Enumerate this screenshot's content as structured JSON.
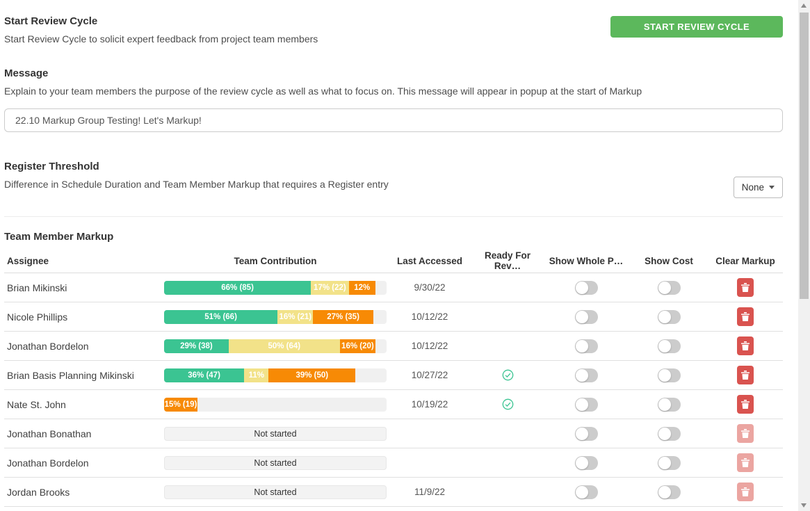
{
  "start_review_cycle": {
    "title": "Start Review Cycle",
    "description": "Start Review Cycle to solicit expert feedback from project team members",
    "button_label": "START REVIEW CYCLE"
  },
  "message": {
    "title": "Message",
    "description": "Explain to your team members the purpose of the review cycle as well as what to focus on. This message will appear in popup at the start of Markup",
    "input_value": "22.10 Markup Group Testing! Let's Markup!"
  },
  "register_threshold": {
    "title": "Register Threshold",
    "description": "Difference in Schedule Duration and Team Member Markup that requires a Register entry",
    "dropdown_value": "None"
  },
  "table": {
    "title": "Team Member Markup",
    "columns": {
      "assignee": "Assignee",
      "contribution": "Team Contribution",
      "last_accessed": "Last Accessed",
      "ready": "Ready For Rev…",
      "show_whole": "Show Whole P…",
      "show_cost": "Show Cost",
      "clear": "Clear Markup"
    },
    "not_started_label": "Not started",
    "rows": [
      {
        "assignee": "Brian Mikinski",
        "segments": [
          {
            "label": "66% (85)",
            "pct": 66,
            "color": "green"
          },
          {
            "label": "17% (22)",
            "pct": 17,
            "color": "yellow"
          },
          {
            "label": "12%",
            "pct": 12,
            "color": "orange"
          }
        ],
        "last_accessed": "9/30/22",
        "ready_for_review": false,
        "show_whole_project": false,
        "show_cost": false,
        "delete_enabled": true
      },
      {
        "assignee": "Nicole Phillips",
        "segments": [
          {
            "label": "51% (66)",
            "pct": 51,
            "color": "green"
          },
          {
            "label": "16% (21)",
            "pct": 16,
            "color": "yellow"
          },
          {
            "label": "27% (35)",
            "pct": 27,
            "color": "orange"
          }
        ],
        "last_accessed": "10/12/22",
        "ready_for_review": false,
        "show_whole_project": false,
        "show_cost": false,
        "delete_enabled": true
      },
      {
        "assignee": "Jonathan Bordelon",
        "segments": [
          {
            "label": "29% (38)",
            "pct": 29,
            "color": "green"
          },
          {
            "label": "50% (64)",
            "pct": 50,
            "color": "yellow"
          },
          {
            "label": "16% (20)",
            "pct": 16,
            "color": "orange"
          }
        ],
        "last_accessed": "10/12/22",
        "ready_for_review": false,
        "show_whole_project": false,
        "show_cost": false,
        "delete_enabled": true
      },
      {
        "assignee": "Brian Basis Planning Mikinski",
        "segments": [
          {
            "label": "36% (47)",
            "pct": 36,
            "color": "green"
          },
          {
            "label": "11%",
            "pct": 11,
            "color": "yellow"
          },
          {
            "label": "39% (50)",
            "pct": 39,
            "color": "orange"
          }
        ],
        "last_accessed": "10/27/22",
        "ready_for_review": true,
        "show_whole_project": false,
        "show_cost": false,
        "delete_enabled": true
      },
      {
        "assignee": "Nate St. John",
        "segments": [
          {
            "label": "15% (19)",
            "pct": 15,
            "color": "orange"
          }
        ],
        "last_accessed": "10/19/22",
        "ready_for_review": true,
        "show_whole_project": false,
        "show_cost": false,
        "delete_enabled": true
      },
      {
        "assignee": "Jonathan Bonathan",
        "segments": [],
        "last_accessed": "",
        "ready_for_review": false,
        "show_whole_project": false,
        "show_cost": false,
        "delete_enabled": false
      },
      {
        "assignee": "Jonathan Bordelon",
        "segments": [],
        "last_accessed": "",
        "ready_for_review": false,
        "show_whole_project": false,
        "show_cost": false,
        "delete_enabled": false
      },
      {
        "assignee": "Jordan Brooks",
        "segments": [],
        "last_accessed": "11/9/22",
        "ready_for_review": false,
        "show_whole_project": false,
        "show_cost": false,
        "delete_enabled": false
      }
    ]
  },
  "colors": {
    "button_green": "#5cb85c",
    "green": "#3bc492",
    "yellow": "#f2e289",
    "orange": "#f78a05",
    "track_gray": "#f0f0f0",
    "delete_red": "#d9534f",
    "check_green": "#3bc492"
  }
}
